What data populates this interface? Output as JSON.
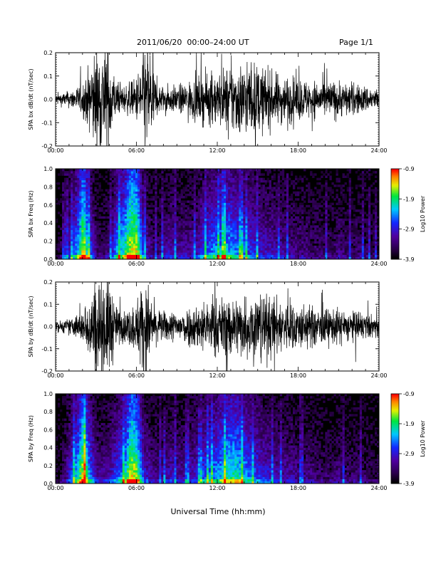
{
  "header": {
    "title": "2011/06/20  00:00–24:00 UT",
    "page": "Page 1/1"
  },
  "xlabel": "Universal Time (hh:mm)",
  "chart_data": [
    {
      "type": "line",
      "ylabel": "SPA bx dB/dt (nT/sec)",
      "xlim": [
        0,
        24
      ],
      "ylim": [
        -0.2,
        0.2
      ],
      "xticks": [
        "00:00",
        "06:00",
        "12:00",
        "18:00",
        "24:00"
      ],
      "yticks": [
        "0.2",
        "0.1",
        "0.0",
        "-0.1",
        "-0.2"
      ],
      "series": [
        {
          "x": [
            0,
            1,
            2,
            2.5,
            3,
            3.5,
            4,
            4.5,
            5,
            5.5,
            6,
            6.5,
            7,
            7.5,
            8,
            9,
            10,
            11,
            12,
            13,
            14,
            15,
            16,
            17,
            18,
            19,
            20,
            21,
            22,
            23,
            24
          ],
          "amp": [
            0.02,
            0.03,
            0.06,
            0.12,
            0.2,
            0.2,
            0.2,
            0.06,
            0.05,
            0.06,
            0.08,
            0.2,
            0.2,
            0.06,
            0.05,
            0.05,
            0.07,
            0.09,
            0.1,
            0.13,
            0.14,
            0.13,
            0.1,
            0.09,
            0.08,
            0.07,
            0.07,
            0.07,
            0.06,
            0.05,
            0.04
          ]
        }
      ]
    },
    {
      "type": "heatmap",
      "ylabel": "SPA bx Freq (Hz)",
      "xlim": [
        0,
        24
      ],
      "ylim": [
        0,
        1
      ],
      "xticks": [
        "00:00",
        "06:00",
        "12:00",
        "18:00",
        "24:00"
      ],
      "yticks": [
        "1.0",
        "0.8",
        "0.6",
        "0.4",
        "0.2",
        "0.0"
      ],
      "colorbar": {
        "label": "Log10 Power",
        "ticks": [
          "-0.9",
          "-1.9",
          "-2.9",
          "-3.9"
        ]
      },
      "activity": [
        0.1,
        0.2,
        0.35,
        0.6,
        0.95,
        0.5,
        0.2,
        0.2,
        0.3,
        0.6,
        0.7,
        0.95,
        0.9,
        0.4,
        0.25,
        0.2,
        0.3,
        0.35,
        0.3,
        0.3,
        0.3,
        0.35,
        0.5,
        0.55,
        0.6,
        0.65,
        0.6,
        0.55,
        0.5,
        0.45,
        0.4,
        0.35,
        0.35,
        0.3,
        0.3,
        0.25,
        0.25,
        0.25,
        0.2,
        0.2,
        0.2,
        0.2,
        0.25,
        0.2,
        0.2,
        0.2,
        0.2,
        0.15
      ]
    },
    {
      "type": "line",
      "ylabel": "SPA by dB/dt (nT/sec)",
      "xlim": [
        0,
        24
      ],
      "ylim": [
        -0.2,
        0.2
      ],
      "xticks": [
        "00:00",
        "06:00",
        "12:00",
        "18:00",
        "24:00"
      ],
      "yticks": [
        "0.2",
        "0.1",
        "0.0",
        "-0.1",
        "-0.2"
      ],
      "series": [
        {
          "x": [
            0,
            1,
            2,
            2.5,
            3,
            3.5,
            4,
            4.5,
            5,
            5.5,
            6,
            6.5,
            7,
            7.5,
            8,
            9,
            10,
            11,
            12,
            13,
            14,
            15,
            16,
            17,
            18,
            19,
            20,
            21,
            22,
            23,
            24
          ],
          "amp": [
            0.02,
            0.03,
            0.06,
            0.12,
            0.2,
            0.2,
            0.2,
            0.08,
            0.06,
            0.07,
            0.1,
            0.2,
            0.14,
            0.06,
            0.06,
            0.06,
            0.08,
            0.1,
            0.11,
            0.12,
            0.12,
            0.14,
            0.12,
            0.1,
            0.09,
            0.08,
            0.07,
            0.07,
            0.06,
            0.05,
            0.04
          ]
        }
      ]
    },
    {
      "type": "heatmap",
      "ylabel": "SPA by Freq (Hz)",
      "xlim": [
        0,
        24
      ],
      "ylim": [
        0,
        1
      ],
      "xticks": [
        "00:00",
        "06:00",
        "12:00",
        "18:00",
        "24:00"
      ],
      "yticks": [
        "1.0",
        "0.8",
        "0.6",
        "0.4",
        "0.2",
        "0.0"
      ],
      "colorbar": {
        "label": "Log10 Power",
        "ticks": [
          "-0.9",
          "-1.9",
          "-2.9",
          "-3.9"
        ]
      },
      "activity": [
        0.1,
        0.2,
        0.4,
        0.65,
        0.95,
        0.55,
        0.3,
        0.3,
        0.35,
        0.5,
        0.6,
        0.95,
        0.85,
        0.4,
        0.3,
        0.25,
        0.3,
        0.35,
        0.3,
        0.3,
        0.35,
        0.4,
        0.5,
        0.55,
        0.6,
        0.7,
        0.75,
        0.7,
        0.6,
        0.5,
        0.45,
        0.4,
        0.35,
        0.3,
        0.3,
        0.3,
        0.25,
        0.25,
        0.25,
        0.2,
        0.2,
        0.2,
        0.25,
        0.2,
        0.2,
        0.2,
        0.2,
        0.15
      ]
    }
  ]
}
